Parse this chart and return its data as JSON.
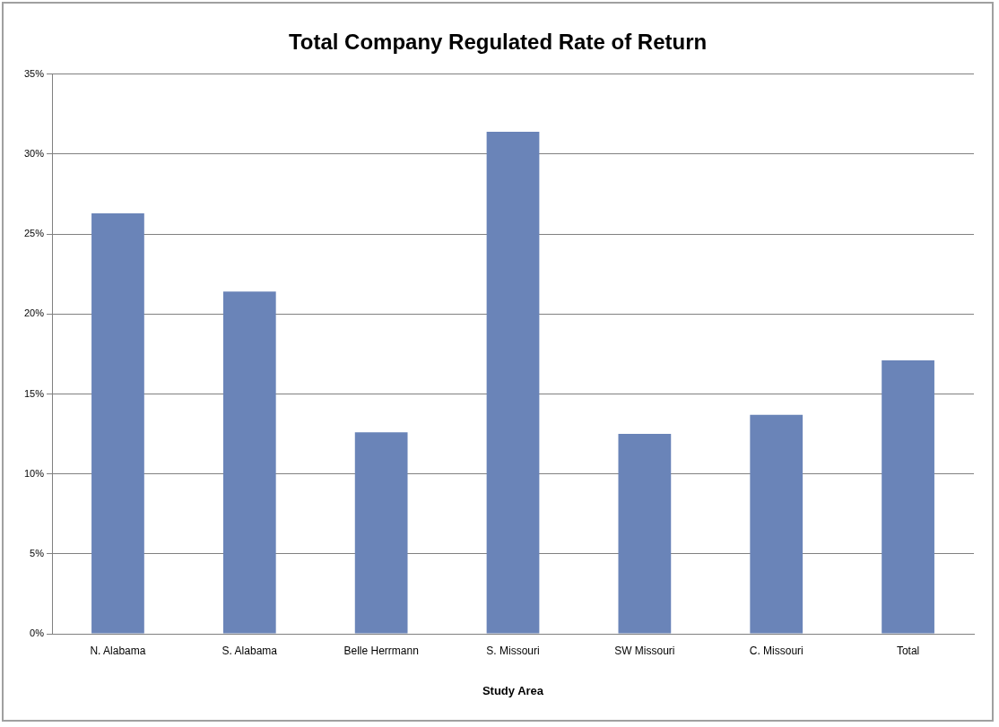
{
  "chart_data": {
    "type": "bar",
    "title": "Total Company Regulated Rate of Return",
    "xlabel": "Study Area",
    "categories": [
      "N. Alabama",
      "S. Alabama",
      "Belle Herrmann",
      "S. Missouri",
      "SW Missouri",
      "C. Missouri",
      "Total"
    ],
    "values": [
      26.3,
      21.4,
      12.6,
      31.4,
      12.5,
      13.7,
      17.1
    ],
    "color": "#6a84b8",
    "ylim": [
      0,
      35
    ],
    "yticks": [
      {
        "value": 0,
        "label": "0%"
      },
      {
        "value": 5,
        "label": "5%"
      },
      {
        "value": 10,
        "label": "10%"
      },
      {
        "value": 15,
        "label": "15%"
      },
      {
        "value": 20,
        "label": "20%"
      },
      {
        "value": 25,
        "label": "25%"
      },
      {
        "value": 30,
        "label": "30%"
      },
      {
        "value": 35,
        "label": "35%"
      }
    ],
    "grid": "y",
    "legend": false
  }
}
